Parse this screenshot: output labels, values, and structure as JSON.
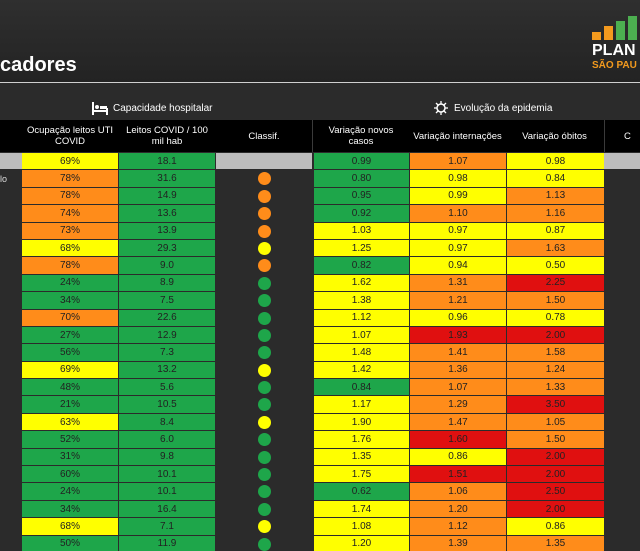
{
  "page": {
    "title": "cadores"
  },
  "logo": {
    "word": "PLAN",
    "sub": "SÃO PAU",
    "bar_colors": [
      "#f39a1e",
      "#f39a1e",
      "#4caf50",
      "#4caf50"
    ]
  },
  "sections": {
    "hospital": "Capacidade hospitalar",
    "epidemic": "Evolução da epidemia"
  },
  "columns": {
    "uti": "Ocupação leitos UTI COVID",
    "leitos": "Leitos COVID / 100 mil hab",
    "classif": "Classif.",
    "casos": "Variação novos casos",
    "internacoes": "Variação internações",
    "obitos": "Variação óbitos",
    "extra": "C"
  },
  "colors": {
    "green": "#1ea64a",
    "yellow": "#ffff00",
    "orange": "#ff8c1a",
    "red": "#e01010"
  },
  "rows": [
    {
      "name": "",
      "uti": "69%",
      "uti_c": "y",
      "leitos": "18.1",
      "leitos_c": "g",
      "classif": "gray",
      "casos": "0.99",
      "casos_c": "g",
      "inter": "1.07",
      "inter_c": "o",
      "obitos": "0.98",
      "obitos_c": "y",
      "first": true
    },
    {
      "name": "lo",
      "uti": "78%",
      "uti_c": "o",
      "leitos": "31.6",
      "leitos_c": "g",
      "classif": "o",
      "casos": "0.80",
      "casos_c": "g",
      "inter": "0.98",
      "inter_c": "y",
      "obitos": "0.84",
      "obitos_c": "y"
    },
    {
      "name": "",
      "uti": "78%",
      "uti_c": "o",
      "leitos": "14.9",
      "leitos_c": "g",
      "classif": "o",
      "casos": "0.95",
      "casos_c": "g",
      "inter": "0.99",
      "inter_c": "y",
      "obitos": "1.13",
      "obitos_c": "o"
    },
    {
      "name": "",
      "uti": "74%",
      "uti_c": "o",
      "leitos": "13.6",
      "leitos_c": "g",
      "classif": "o",
      "casos": "0.92",
      "casos_c": "g",
      "inter": "1.10",
      "inter_c": "o",
      "obitos": "1.16",
      "obitos_c": "o"
    },
    {
      "name": "",
      "uti": "73%",
      "uti_c": "o",
      "leitos": "13.9",
      "leitos_c": "g",
      "classif": "o",
      "casos": "1.03",
      "casos_c": "y",
      "inter": "0.97",
      "inter_c": "y",
      "obitos": "0.87",
      "obitos_c": "y"
    },
    {
      "name": "",
      "uti": "68%",
      "uti_c": "y",
      "leitos": "29.3",
      "leitos_c": "g",
      "classif": "y",
      "casos": "1.25",
      "casos_c": "y",
      "inter": "0.97",
      "inter_c": "y",
      "obitos": "1.63",
      "obitos_c": "o"
    },
    {
      "name": "",
      "uti": "78%",
      "uti_c": "o",
      "leitos": "9.0",
      "leitos_c": "g",
      "classif": "o",
      "casos": "0.82",
      "casos_c": "g",
      "inter": "0.94",
      "inter_c": "y",
      "obitos": "0.50",
      "obitos_c": "y"
    },
    {
      "name": "",
      "uti": "24%",
      "uti_c": "g",
      "leitos": "8.9",
      "leitos_c": "g",
      "classif": "g",
      "casos": "1.62",
      "casos_c": "y",
      "inter": "1.31",
      "inter_c": "o",
      "obitos": "2.25",
      "obitos_c": "r"
    },
    {
      "name": "",
      "uti": "34%",
      "uti_c": "g",
      "leitos": "7.5",
      "leitos_c": "g",
      "classif": "g",
      "casos": "1.38",
      "casos_c": "y",
      "inter": "1.21",
      "inter_c": "o",
      "obitos": "1.50",
      "obitos_c": "o"
    },
    {
      "name": "",
      "uti": "70%",
      "uti_c": "o",
      "leitos": "22.6",
      "leitos_c": "g",
      "classif": "g",
      "casos": "1.12",
      "casos_c": "y",
      "inter": "0.96",
      "inter_c": "y",
      "obitos": "0.78",
      "obitos_c": "y"
    },
    {
      "name": "",
      "uti": "27%",
      "uti_c": "g",
      "leitos": "12.9",
      "leitos_c": "g",
      "classif": "g",
      "casos": "1.07",
      "casos_c": "y",
      "inter": "1.93",
      "inter_c": "r",
      "obitos": "2.00",
      "obitos_c": "r"
    },
    {
      "name": "",
      "uti": "56%",
      "uti_c": "g",
      "leitos": "7.3",
      "leitos_c": "g",
      "classif": "g",
      "casos": "1.48",
      "casos_c": "y",
      "inter": "1.41",
      "inter_c": "o",
      "obitos": "1.58",
      "obitos_c": "o"
    },
    {
      "name": "",
      "uti": "69%",
      "uti_c": "y",
      "leitos": "13.2",
      "leitos_c": "g",
      "classif": "y",
      "casos": "1.42",
      "casos_c": "y",
      "inter": "1.36",
      "inter_c": "o",
      "obitos": "1.24",
      "obitos_c": "o"
    },
    {
      "name": "",
      "uti": "48%",
      "uti_c": "g",
      "leitos": "5.6",
      "leitos_c": "g",
      "classif": "g",
      "casos": "0.84",
      "casos_c": "g",
      "inter": "1.07",
      "inter_c": "o",
      "obitos": "1.33",
      "obitos_c": "o"
    },
    {
      "name": "",
      "uti": "21%",
      "uti_c": "g",
      "leitos": "10.5",
      "leitos_c": "g",
      "classif": "g",
      "casos": "1.17",
      "casos_c": "y",
      "inter": "1.29",
      "inter_c": "o",
      "obitos": "3.50",
      "obitos_c": "r"
    },
    {
      "name": "",
      "uti": "63%",
      "uti_c": "y",
      "leitos": "8.4",
      "leitos_c": "g",
      "classif": "y",
      "casos": "1.90",
      "casos_c": "y",
      "inter": "1.47",
      "inter_c": "o",
      "obitos": "1.05",
      "obitos_c": "o"
    },
    {
      "name": "",
      "uti": "52%",
      "uti_c": "g",
      "leitos": "6.0",
      "leitos_c": "g",
      "classif": "g",
      "casos": "1.76",
      "casos_c": "y",
      "inter": "1.60",
      "inter_c": "r",
      "obitos": "1.50",
      "obitos_c": "o"
    },
    {
      "name": "",
      "uti": "31%",
      "uti_c": "g",
      "leitos": "9.8",
      "leitos_c": "g",
      "classif": "g",
      "casos": "1.35",
      "casos_c": "y",
      "inter": "0.86",
      "inter_c": "y",
      "obitos": "2.00",
      "obitos_c": "r"
    },
    {
      "name": "",
      "uti": "60%",
      "uti_c": "g",
      "leitos": "10.1",
      "leitos_c": "g",
      "classif": "g",
      "casos": "1.75",
      "casos_c": "y",
      "inter": "1.51",
      "inter_c": "r",
      "obitos": "2.00",
      "obitos_c": "r"
    },
    {
      "name": "",
      "uti": "24%",
      "uti_c": "g",
      "leitos": "10.1",
      "leitos_c": "g",
      "classif": "g",
      "casos": "0.62",
      "casos_c": "g",
      "inter": "1.06",
      "inter_c": "o",
      "obitos": "2.50",
      "obitos_c": "r"
    },
    {
      "name": "",
      "uti": "34%",
      "uti_c": "g",
      "leitos": "16.4",
      "leitos_c": "g",
      "classif": "g",
      "casos": "1.74",
      "casos_c": "y",
      "inter": "1.20",
      "inter_c": "o",
      "obitos": "2.00",
      "obitos_c": "r"
    },
    {
      "name": "",
      "uti": "68%",
      "uti_c": "y",
      "leitos": "7.1",
      "leitos_c": "g",
      "classif": "y",
      "casos": "1.08",
      "casos_c": "y",
      "inter": "1.12",
      "inter_c": "o",
      "obitos": "0.86",
      "obitos_c": "y"
    },
    {
      "name": "",
      "uti": "50%",
      "uti_c": "g",
      "leitos": "11.9",
      "leitos_c": "g",
      "classif": "g",
      "casos": "1.20",
      "casos_c": "y",
      "inter": "1.39",
      "inter_c": "o",
      "obitos": "1.35",
      "obitos_c": "o"
    }
  ]
}
